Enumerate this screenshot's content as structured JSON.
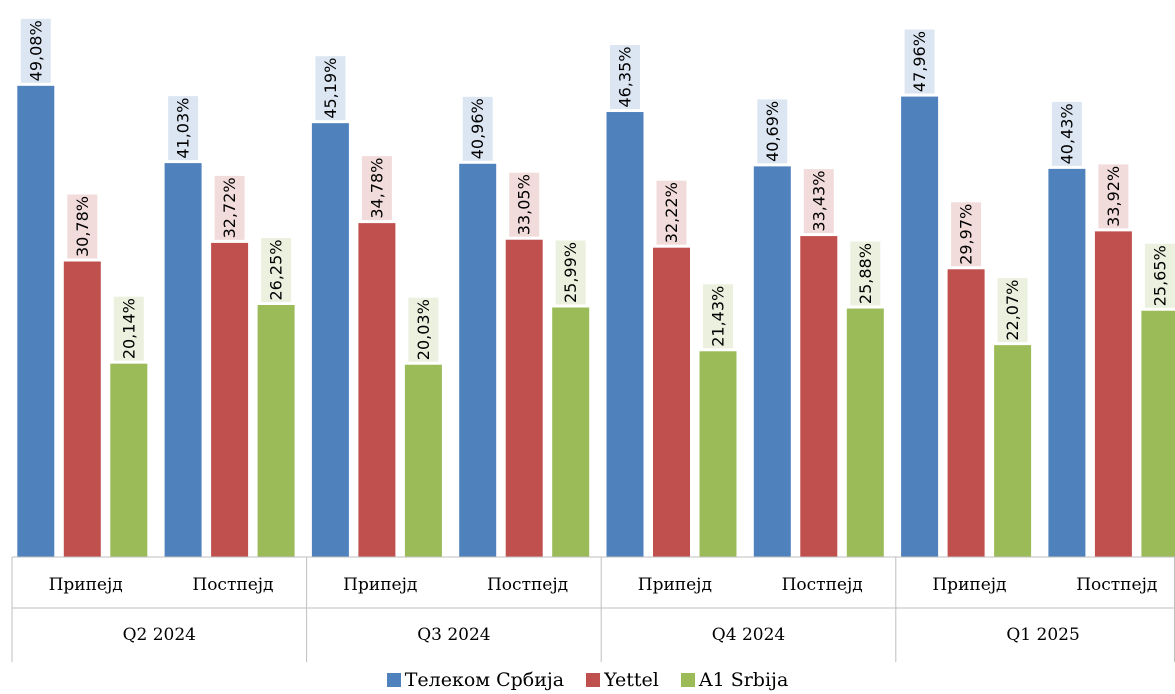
{
  "chart_data": {
    "type": "bar",
    "title": "",
    "xlabel": "",
    "ylabel": "",
    "ylim": [
      0,
      52
    ],
    "grid": false,
    "legend_position": "bottom",
    "groups": [
      {
        "quarter": "Q2 2024",
        "categories": [
          "Припејд",
          "Постпејд"
        ]
      },
      {
        "quarter": "Q3 2024",
        "categories": [
          "Припејд",
          "Постпејд"
        ]
      },
      {
        "quarter": "Q4 2024",
        "categories": [
          "Припејд",
          "Постпејд"
        ]
      },
      {
        "quarter": "Q1 2025",
        "categories": [
          "Припејд",
          "Постпејд"
        ]
      }
    ],
    "series": [
      {
        "name": "Телеком Србија",
        "color": "#4F81BD",
        "label_bg": "#DCE6F2",
        "values": [
          49.08,
          41.03,
          45.19,
          40.96,
          46.35,
          40.69,
          47.96,
          40.43
        ],
        "labels": [
          "49,08%",
          "41,03%",
          "45,19%",
          "40,96%",
          "46,35%",
          "40,69%",
          "47,96%",
          "40,43%"
        ]
      },
      {
        "name": "Yettel",
        "color": "#C0504D",
        "label_bg": "#F2DCDB",
        "values": [
          30.78,
          32.72,
          34.78,
          33.05,
          32.22,
          33.43,
          29.97,
          33.92
        ],
        "labels": [
          "30,78%",
          "32,72%",
          "34,78%",
          "33,05%",
          "32,22%",
          "33,43%",
          "29,97%",
          "33,92%"
        ]
      },
      {
        "name": "A1 Srbija",
        "color": "#9BBB59",
        "label_bg": "#EBF1DE",
        "values": [
          20.14,
          26.25,
          20.03,
          25.99,
          21.43,
          25.88,
          22.07,
          25.65
        ],
        "labels": [
          "20,14%",
          "26,25%",
          "20,03%",
          "25,99%",
          "21,43%",
          "25,88%",
          "22,07%",
          "25,65%"
        ]
      }
    ]
  }
}
